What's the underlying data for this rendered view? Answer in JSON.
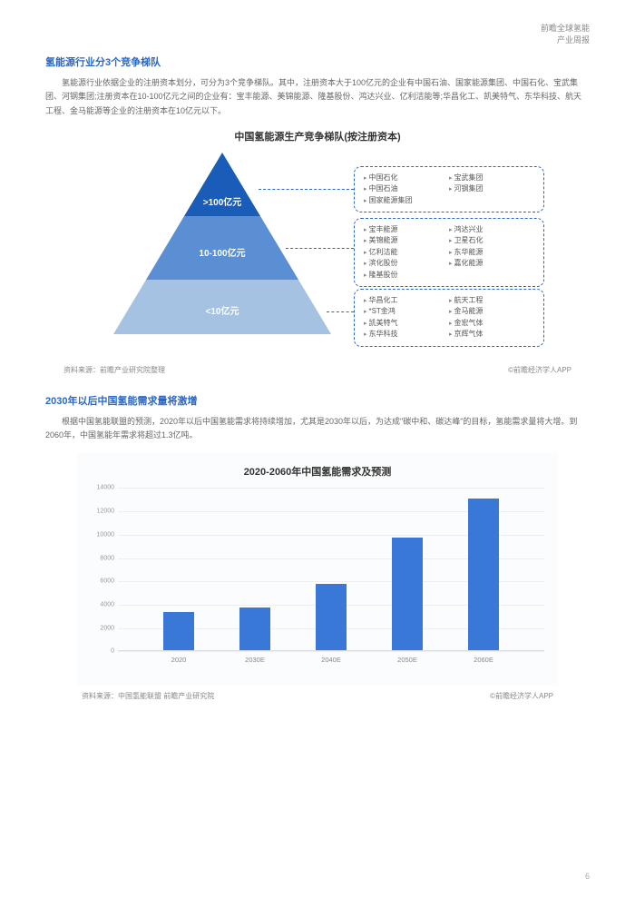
{
  "header": {
    "line1": "前瞻全球氢能",
    "line2": "产业周报"
  },
  "section1": {
    "title": "氢能源行业分3个竞争梯队",
    "body": "氢能源行业依据企业的注册资本划分，可分为3个竞争梯队。其中，注册资本大于100亿元的企业有中国石油、国家能源集团、中国石化、宝武集团、河钢集团;注册资本在10-100亿元之间的企业有：宝丰能源、美锦能源、隆基股份、鸿达兴业、亿利洁能等;华昌化工、凯美特气、东华科技、航天工程、金马能源等企业的注册资本在10亿元以下。"
  },
  "pyramid": {
    "title": "中国氢能源生产竞争梯队(按注册资本)",
    "tier_colors": [
      "#1a5db8",
      "#5a8fd4",
      "#a6c2e3"
    ],
    "tiers": [
      {
        "label": ">100亿元",
        "col1": [
          "中国石化",
          "中国石油",
          "国家能源集团"
        ],
        "col2": [
          "宝武集团",
          "河钢集团"
        ]
      },
      {
        "label": "10-100亿元",
        "col1": [
          "宝丰能源",
          "美锦能源",
          "亿利洁能",
          "滨化股份",
          "隆基股份"
        ],
        "col2": [
          "鸿达兴业",
          "卫星石化",
          "东华能源",
          "嘉化能源"
        ]
      },
      {
        "label": "<10亿元",
        "col1": [
          "华昌化工",
          "*ST金鸿",
          "凯美特气",
          "东华科技"
        ],
        "col2": [
          "航天工程",
          "金马能源",
          "金宏气体",
          "京辉气体"
        ]
      }
    ],
    "source_left": "资料来源：前瞻产业研究院整理",
    "source_right": "©前瞻经济学人APP"
  },
  "section2": {
    "title": "2030年以后中国氢能需求量将激增",
    "body": "根据中国氢能联盟的预测，2020年以后中国氢能需求将持续增加，尤其是2030年以后，为达成\"碳中和、碳达峰\"的目标，氢能需求量将大增。到2060年，中国氢能年需求将超过1.3亿吨。"
  },
  "barchart": {
    "title": "2020-2060年中国氢能需求及预测",
    "categories": [
      "2020",
      "2030E",
      "2040E",
      "2050E",
      "2060E"
    ],
    "values": [
      3300,
      3700,
      5700,
      9700,
      13000
    ],
    "ylim_max": 14000,
    "ytick_step": 2000,
    "bar_color": "#3a78d8",
    "grid_color": "#eeeeee",
    "source_left": "资料来源：中国氢能联盟 前瞻产业研究院",
    "source_right": "©前瞻经济学人APP"
  },
  "page_number": "6"
}
